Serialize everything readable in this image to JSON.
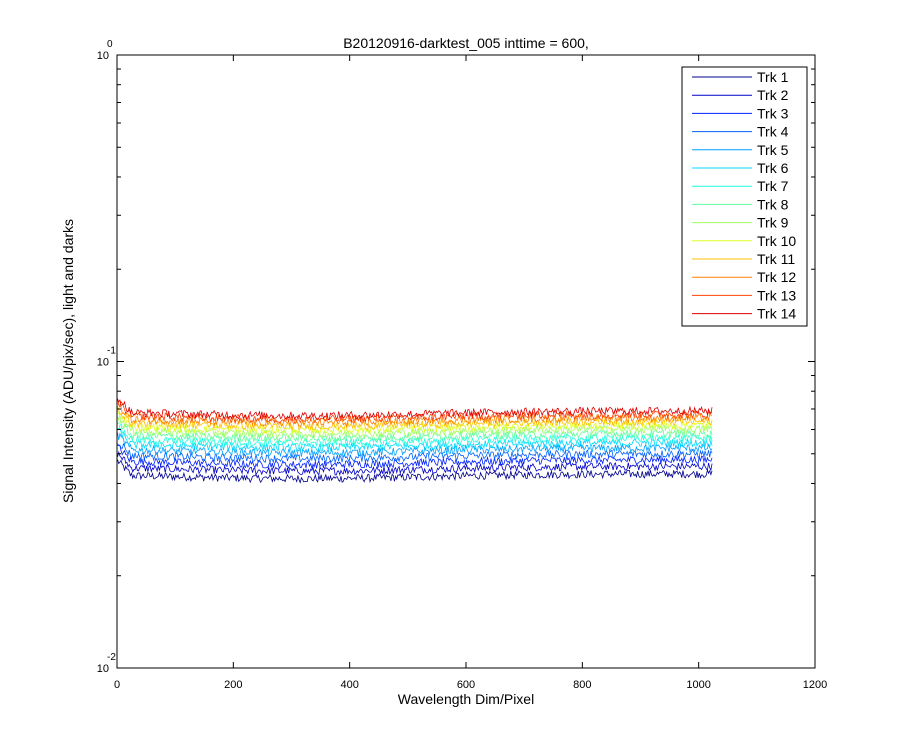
{
  "chart_data": {
    "type": "line",
    "title": "B20120916-darktest_005 inttime = 600,",
    "xlabel": "Wavelength Dim/Pixel",
    "ylabel": "Signal Intensity (ADU/pix/sec), light and darks",
    "xlim": [
      0,
      1200
    ],
    "ylim": [
      0.01,
      1
    ],
    "yscale": "log",
    "x_ticks": [
      "0",
      "200",
      "400",
      "600",
      "800",
      "1000",
      "1200"
    ],
    "y_ticks": [
      {
        "base": "10",
        "exp": "-2"
      },
      {
        "base": "10",
        "exp": "-1"
      },
      {
        "base": "10",
        "exp": "0"
      }
    ],
    "legend_position": "top-right",
    "x_range": [
      1,
      1024
    ],
    "series": [
      {
        "name": "Trk 1",
        "color": "#00008F",
        "level": 0.043
      },
      {
        "name": "Trk 2",
        "color": "#0000C8",
        "level": 0.0455
      },
      {
        "name": "Trk 3",
        "color": "#0020FF",
        "level": 0.0478
      },
      {
        "name": "Trk 4",
        "color": "#0060FF",
        "level": 0.05
      },
      {
        "name": "Trk 5",
        "color": "#00A0FF",
        "level": 0.0522
      },
      {
        "name": "Trk 6",
        "color": "#00D8FF",
        "level": 0.0543
      },
      {
        "name": "Trk 7",
        "color": "#20FFDF",
        "level": 0.0562
      },
      {
        "name": "Trk 8",
        "color": "#60FF9F",
        "level": 0.0582
      },
      {
        "name": "Trk 9",
        "color": "#A0FF60",
        "level": 0.0602
      },
      {
        "name": "Trk 10",
        "color": "#DFFF20",
        "level": 0.062
      },
      {
        "name": "Trk 11",
        "color": "#FFC000",
        "level": 0.0638
      },
      {
        "name": "Trk 12",
        "color": "#FF8000",
        "level": 0.0655
      },
      {
        "name": "Trk 13",
        "color": "#FF4000",
        "level": 0.0672
      },
      {
        "name": "Trk 14",
        "color": "#DF0000",
        "level": 0.069
      }
    ]
  }
}
